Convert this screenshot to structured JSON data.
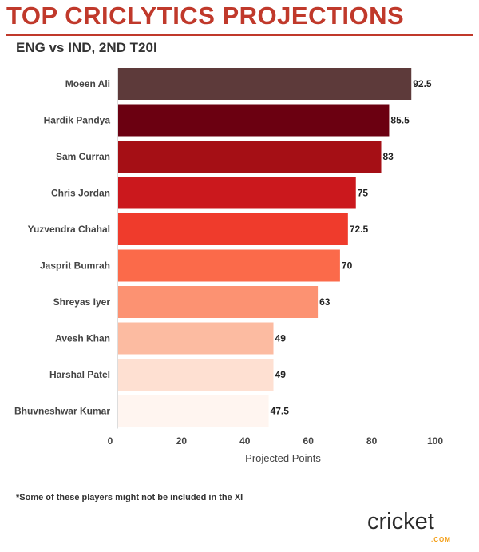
{
  "header": {
    "title": "TOP CRICLYTICS PROJECTIONS",
    "subtitle": "ENG vs IND, 2ND T20I"
  },
  "footnote": "*Some of these players might not be included in the XI",
  "logo": {
    "wordmark": "cricket",
    "suffix": ".COM",
    "accent_color": "#f39c12"
  },
  "colors": {
    "title": "#c0392b",
    "bars": [
      "#5d3a3a",
      "#6b0011",
      "#a50f15",
      "#cb181d",
      "#ef3b2c",
      "#fb6a4a",
      "#fc9272",
      "#fcbba1",
      "#fee0d2",
      "#fff5f0"
    ]
  },
  "chart_data": {
    "type": "bar",
    "orientation": "horizontal",
    "categories": [
      "Moeen Ali",
      "Hardik Pandya",
      "Sam Curran",
      "Chris Jordan",
      "Yuzvendra Chahal",
      "Jasprit Bumrah",
      "Shreyas Iyer",
      "Avesh Khan",
      "Harshal Patel",
      "Bhuvneshwar Kumar"
    ],
    "values": [
      92.5,
      85.5,
      83,
      75,
      72.5,
      70,
      63,
      49,
      49,
      47.5
    ],
    "value_labels": [
      "92.5",
      "85.5",
      "83",
      "75",
      "72.5",
      "70",
      "63",
      "49",
      "49",
      "47.5"
    ],
    "xlabel": "Projected Points",
    "ylabel": "",
    "xlim": [
      0,
      100
    ],
    "xticks": [
      "0",
      "20",
      "40",
      "60",
      "80",
      "100"
    ],
    "grid": false
  }
}
